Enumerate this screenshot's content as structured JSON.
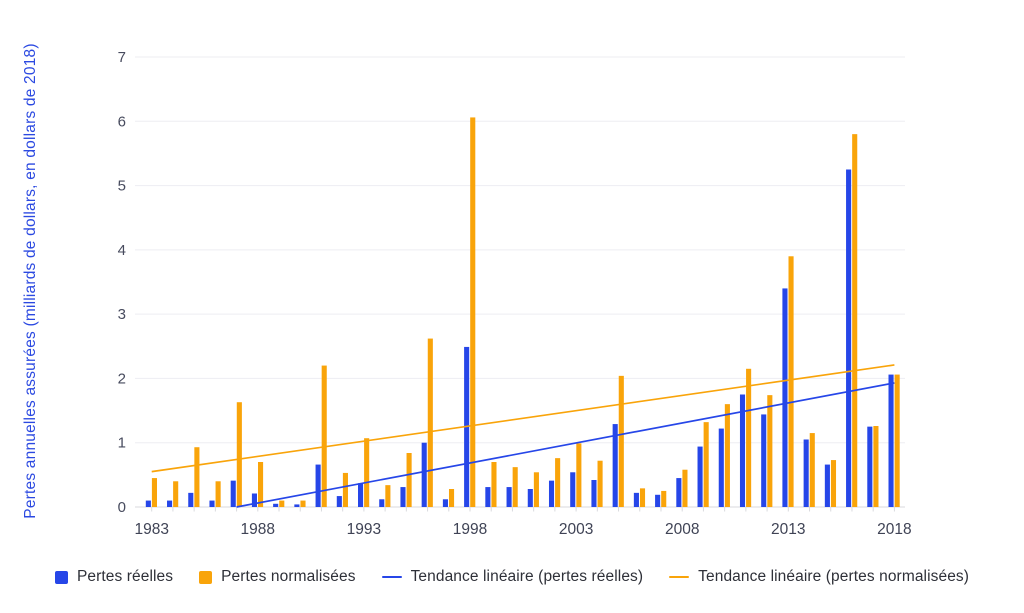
{
  "colors": {
    "series_blue": "#2646E8",
    "series_orange": "#F9A40A",
    "axis_title": "#2B49E1",
    "axis_text": "#474B5E",
    "gridline": "#EDEDF2",
    "zero_line": "#D9DADE"
  },
  "y_axis": {
    "label": "Pertes annuelles assurées (milliards de dollars, en dollars de 2018)",
    "ticks": [
      0,
      1,
      2,
      3,
      4,
      5,
      6,
      7
    ]
  },
  "x_axis": {
    "tick_labels": [
      "1983",
      "1988",
      "1993",
      "1998",
      "2003",
      "2008",
      "2013",
      "2018"
    ]
  },
  "legend": [
    {
      "label": "Pertes réelles",
      "type": "square",
      "color": "#2646E8"
    },
    {
      "label": "Pertes normalisées",
      "type": "square",
      "color": "#F9A40A"
    },
    {
      "label": "Tendance linéaire (pertes réelles)",
      "type": "line",
      "color": "#2646E8"
    },
    {
      "label": "Tendance linéaire (pertes normalisées)",
      "type": "line",
      "color": "#F9A40A"
    }
  ],
  "chart_data": {
    "type": "bar",
    "title": "",
    "xlabel": "",
    "ylabel": "Pertes annuelles assurées (milliards de dollars, en dollars de 2018)",
    "ylim": [
      0,
      7
    ],
    "grid": "horizontal",
    "legend_position": "bottom",
    "categories": [
      1983,
      1984,
      1985,
      1986,
      1987,
      1988,
      1989,
      1990,
      1991,
      1992,
      1993,
      1994,
      1995,
      1996,
      1997,
      1998,
      1999,
      2000,
      2001,
      2002,
      2003,
      2004,
      2005,
      2006,
      2007,
      2008,
      2009,
      2010,
      2011,
      2012,
      2013,
      2014,
      2015,
      2016,
      2017,
      2018
    ],
    "series": [
      {
        "name": "Pertes réelles",
        "color": "#2646E8",
        "values": [
          0.1,
          0.1,
          0.22,
          0.1,
          0.41,
          0.21,
          0.05,
          0.04,
          0.66,
          0.17,
          0.37,
          0.12,
          0.31,
          1.0,
          0.12,
          2.49,
          0.31,
          0.31,
          0.28,
          0.41,
          0.54,
          0.42,
          1.29,
          0.22,
          0.19,
          0.45,
          0.94,
          1.22,
          1.75,
          1.44,
          3.4,
          1.05,
          0.66,
          5.25,
          1.25,
          2.06
        ]
      },
      {
        "name": "Pertes normalisées",
        "color": "#F9A40A",
        "values": [
          0.45,
          0.4,
          0.93,
          0.4,
          1.63,
          0.7,
          0.1,
          0.1,
          2.2,
          0.53,
          1.07,
          0.34,
          0.84,
          2.62,
          0.28,
          6.06,
          0.7,
          0.62,
          0.54,
          0.76,
          0.99,
          0.72,
          2.04,
          0.29,
          0.25,
          0.58,
          1.32,
          1.6,
          2.15,
          1.74,
          3.9,
          1.15,
          0.73,
          5.8,
          1.26,
          2.06
        ]
      }
    ],
    "trend_lines": [
      {
        "name": "Tendance linéaire (pertes réelles)",
        "color": "#2646E8",
        "start": {
          "year": 1987,
          "value": 0
        },
        "end": {
          "year": 2018,
          "value": 1.93
        }
      },
      {
        "name": "Tendance linéaire (pertes normalisées)",
        "color": "#F9A40A",
        "start": {
          "year": 1983,
          "value": 0.55
        },
        "end": {
          "year": 2018,
          "value": 2.21
        }
      }
    ]
  }
}
